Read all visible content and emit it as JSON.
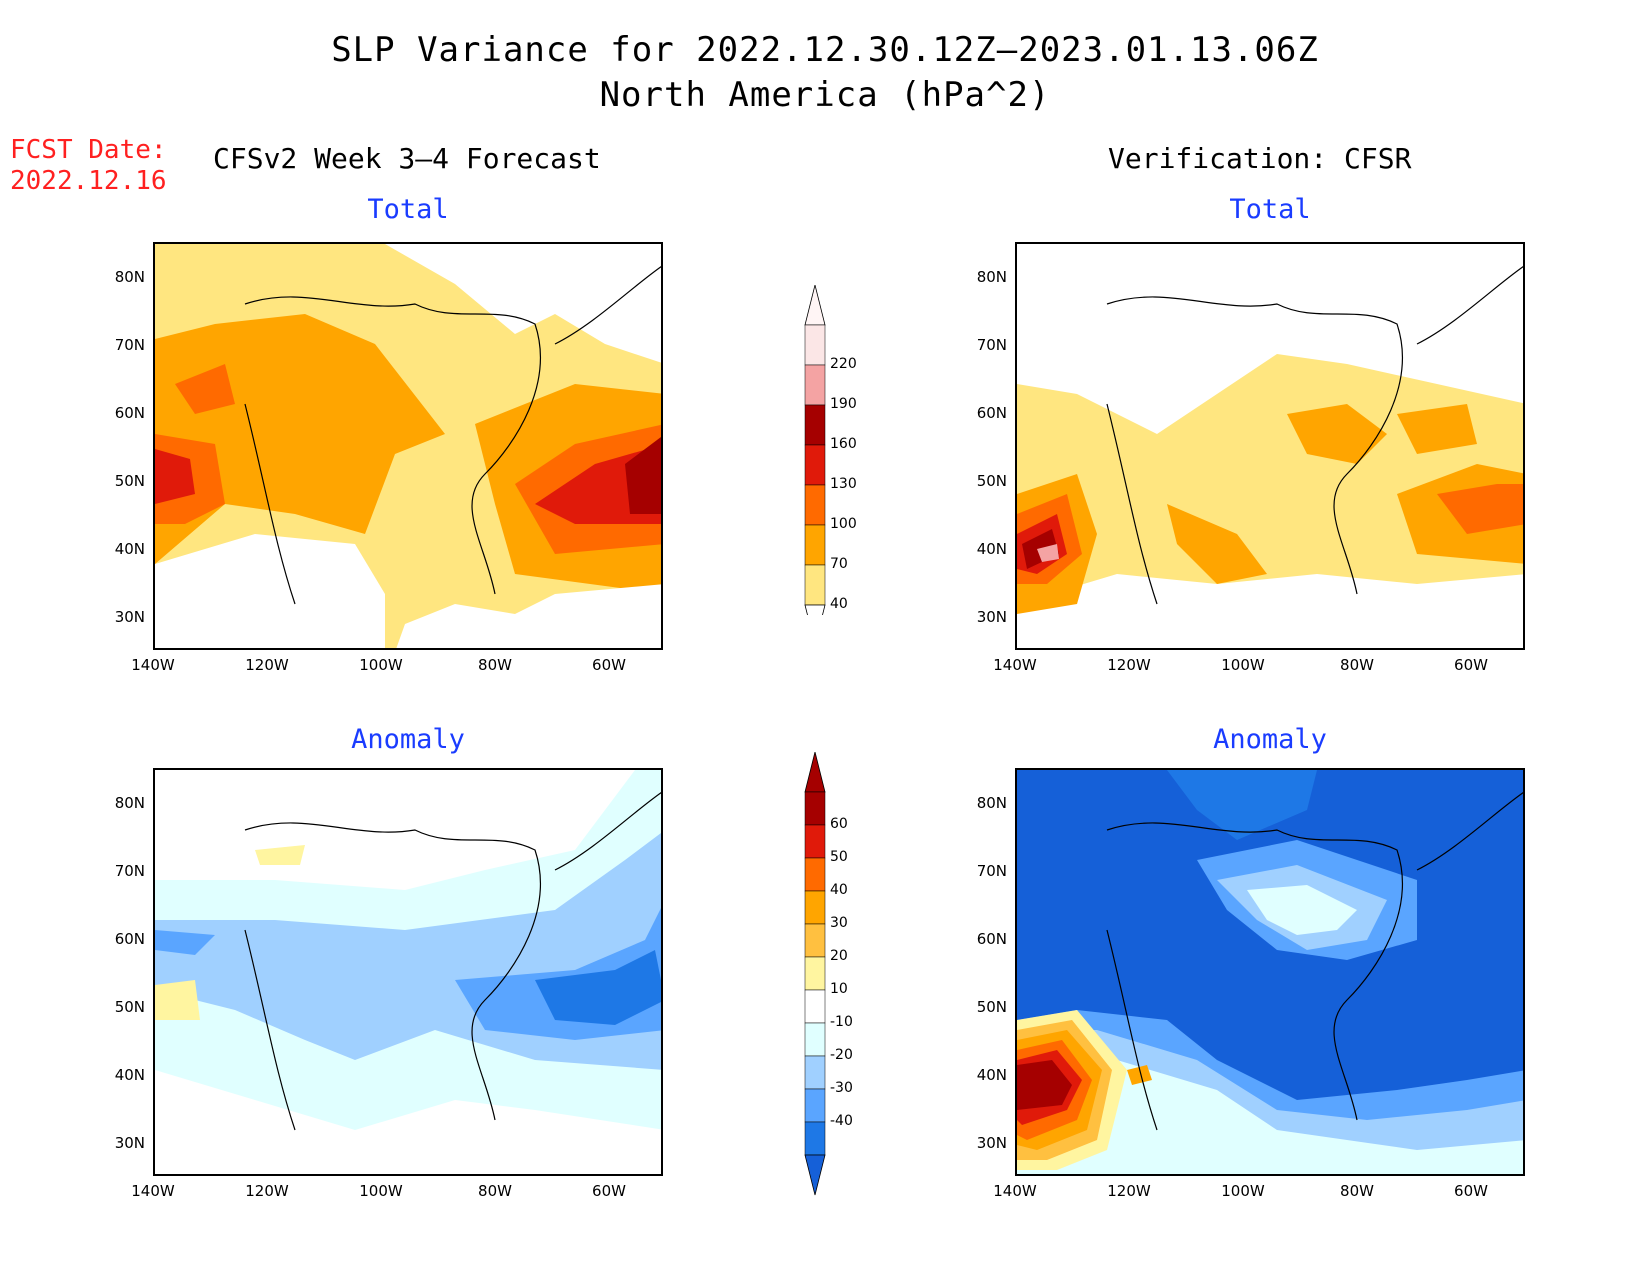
{
  "title": {
    "line1": "SLP Variance for 2022.12.30.12Z—2023.01.13.06Z",
    "line2": "North America (hPa^2)"
  },
  "fcst_date": {
    "label": "FCST Date:",
    "value": "2022.12.16"
  },
  "columns": {
    "left": "CFSv2 Week 3—4 Forecast",
    "right": "Verification: CFSR"
  },
  "panels": [
    {
      "id": "forecast-total",
      "title": "Total"
    },
    {
      "id": "verification-total",
      "title": "Total"
    },
    {
      "id": "forecast-anomaly",
      "title": "Anomaly"
    },
    {
      "id": "verification-anomaly",
      "title": "Anomaly"
    }
  ],
  "axes": {
    "lat_labels": [
      "80N",
      "70N",
      "60N",
      "50N",
      "40N",
      "30N"
    ],
    "lon_labels": [
      "140W",
      "120W",
      "100W",
      "80W",
      "60W"
    ]
  },
  "colorbars": {
    "total": {
      "levels": [
        "220",
        "190",
        "160",
        "130",
        "100",
        "70",
        "40"
      ],
      "colors": [
        "#fbe6e6",
        "#f4a3a3",
        "#a50000",
        "#e01a0a",
        "#ff6a00",
        "#ffa500",
        "#ffe680"
      ]
    },
    "anomaly": {
      "levels": [
        "60",
        "50",
        "40",
        "30",
        "20",
        "10",
        "-10",
        "-20",
        "-30",
        "-40"
      ],
      "colors_top": [
        "#a50000",
        "#e01a0a",
        "#ff6a00",
        "#ffa500",
        "#ffc040",
        "#fff5a0",
        "#ffffff",
        "#e0ffff",
        "#a0d0ff",
        "#5aa5ff",
        "#1e78e6",
        "#1560d8"
      ]
    }
  }
}
